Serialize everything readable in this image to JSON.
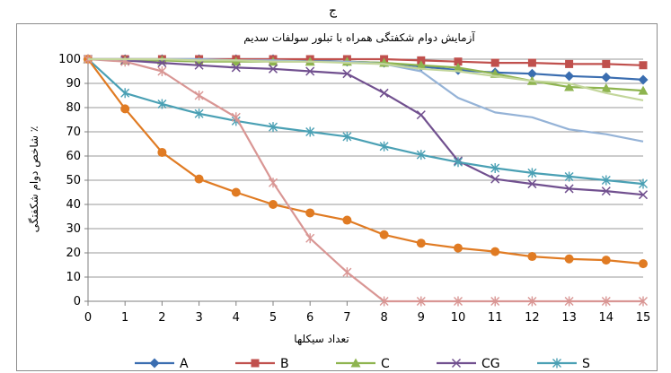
{
  "top_fragment": "ج",
  "chart_data": {
    "type": "line",
    "title": "آزمایش دوام شکفتگی همراه با تبلور سولفات سدیم",
    "xlabel": "تعداد سیکلها",
    "ylabel": "شاخص دوام شکفتگی ٪",
    "x": [
      0,
      1,
      2,
      3,
      4,
      5,
      6,
      7,
      8,
      9,
      10,
      11,
      12,
      13,
      14,
      15
    ],
    "ylim": [
      0,
      100
    ],
    "yticks": [
      "0",
      "10",
      "20",
      "30",
      "40",
      "50",
      "60",
      "70",
      "80",
      "90",
      "100"
    ],
    "xticks": [
      "0",
      "1",
      "2",
      "3",
      "4",
      "5",
      "6",
      "7",
      "8",
      "9",
      "10",
      "11",
      "12",
      "13",
      "14",
      "15"
    ],
    "grid": "horizontal",
    "legend_position": "bottom",
    "series": [
      {
        "name": "A",
        "color": "#3a6db0",
        "marker": "diamond",
        "values": [
          100,
          100,
          100,
          100,
          100,
          100,
          99.5,
          99,
          98.5,
          97,
          95.5,
          94.5,
          94,
          93,
          92.5,
          91.5
        ]
      },
      {
        "name": "B",
        "color": "#c0504d",
        "marker": "square",
        "values": [
          100,
          100,
          100,
          100,
          100,
          100,
          100,
          100,
          100,
          99.5,
          99,
          98.5,
          98.5,
          98,
          98,
          97.5
        ]
      },
      {
        "name": "C",
        "color": "#8eb44f",
        "marker": "triangle",
        "values": [
          100,
          99.5,
          99.5,
          99,
          99,
          99,
          99,
          99,
          98.5,
          97.5,
          96.5,
          94,
          91,
          88.5,
          88,
          87
        ]
      },
      {
        "name": "CG",
        "color": "#71508f",
        "marker": "x",
        "values": [
          100,
          99.5,
          98.5,
          97.5,
          96.5,
          96,
          95,
          94,
          86,
          77,
          58,
          50.5,
          48.5,
          46.5,
          45.5,
          44
        ]
      },
      {
        "name": "S",
        "color": "#4aa0b4",
        "marker": "star",
        "values": [
          100,
          86,
          81.5,
          77.5,
          74.5,
          72,
          70,
          68,
          64,
          60.5,
          57.5,
          55,
          53,
          51.5,
          50,
          48.5
        ]
      },
      {
        "name": "",
        "color": "#e07b23",
        "marker": "circle",
        "values": [
          100,
          79.5,
          61.5,
          50.5,
          45,
          40,
          36.5,
          33.5,
          27.5,
          24,
          22,
          20.5,
          18.5,
          17.5,
          17,
          15.5
        ]
      },
      {
        "name": "",
        "color": "#d99694",
        "marker": "star",
        "values": [
          100,
          99,
          95,
          85,
          76,
          49,
          26,
          12,
          0,
          0,
          0,
          0,
          0,
          0,
          0,
          0
        ]
      },
      {
        "name": "",
        "color": "#95b3d7",
        "marker": "none",
        "values": [
          100,
          100,
          100,
          100,
          99.5,
          99.5,
          99,
          99,
          98,
          95,
          84,
          78,
          76,
          71,
          69,
          66
        ]
      },
      {
        "name": "",
        "color": "#c3d69b",
        "marker": "none",
        "values": [
          100,
          100,
          100,
          99.5,
          99.5,
          99,
          99,
          98.5,
          98,
          96,
          95,
          93,
          91,
          90,
          86,
          83
        ]
      }
    ]
  }
}
